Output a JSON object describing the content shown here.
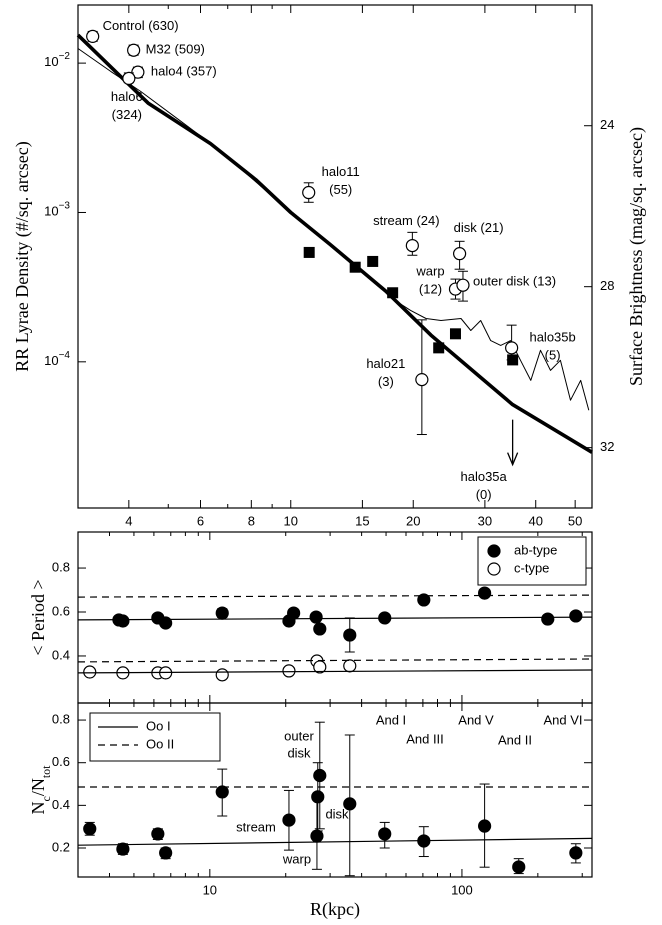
{
  "chart_data": [
    {
      "type": "line",
      "xlog": true,
      "ylog": true,
      "ylabel": "RR Lyrae Density (#/sq. arcsec)",
      "y2label": "Surface Brightness (mag/sq. arcsec)",
      "xlim": [
        3,
        55
      ],
      "ylim": [
        1.05e-05,
        0.0245
      ],
      "y2lim": [
        33.5,
        21
      ],
      "xticks": [
        4,
        6,
        8,
        10,
        15,
        20,
        30,
        40,
        50
      ],
      "xminor_ticks": [
        3,
        5,
        7,
        9
      ],
      "yticks": [
        {
          "value": 0.01,
          "label": "10",
          "exponent": "−2"
        },
        {
          "value": 0.001,
          "label": "10",
          "exponent": "−3"
        },
        {
          "value": 0.0001,
          "label": "10",
          "exponent": "−4"
        }
      ],
      "y2ticks": [
        24,
        28,
        32
      ],
      "series": [
        {
          "style": "thick",
          "color": "#000000",
          "x": [
            3.0,
            4.46,
            6.35,
            8.2,
            10,
            12.5,
            17.1,
            22.1,
            35.1,
            55
          ],
          "values": [
            0.0154,
            0.0054,
            0.00289,
            0.00166,
            0.001,
            0.00061,
            0.000298,
            0.000151,
            5.17e-05,
            2.48e-05
          ]
        },
        {
          "style": "thin",
          "axis": "y2",
          "color": "#000000",
          "x": [
            3.0,
            3.61,
            4.28,
            5.37,
            6.73,
            8.44,
            10,
            11.85,
            14.0,
            16.6,
            18.1,
            19.7,
            21.5,
            23.4,
            26.2,
            27.7,
            29.3,
            31.0,
            32.8,
            34.7,
            36.7,
            38.9,
            41.1,
            43.5,
            46.0,
            48.7,
            51.6,
            54.0
          ],
          "values": [
            22.08,
            22.65,
            23.15,
            23.89,
            24.63,
            25.5,
            26.12,
            26.74,
            27.36,
            27.98,
            28.35,
            28.59,
            28.79,
            28.84,
            28.79,
            29.09,
            28.84,
            29.34,
            29.46,
            29.34,
            29.83,
            30.33,
            29.58,
            30.08,
            29.83,
            30.82,
            30.33,
            31.07
          ]
        },
        {
          "style": "filled-square",
          "color": "#000000",
          "x": [
            11.1,
            14.4,
            15.9,
            17.8,
            23.1,
            25.4,
            35.1
          ],
          "values": [
            0.00054,
            0.00043,
            0.00047,
            0.00029,
            0.000124,
            0.000154,
            0.000103
          ]
        },
        {
          "style": "open-circle",
          "color": "#000000",
          "x": [
            3.26,
            4.11,
            4.21,
            4.0,
            11.07,
            19.9,
            26.0,
            25.4,
            26.5,
            34.9,
            21.0
          ],
          "values": [
            0.0151,
            0.0122,
            0.0087,
            0.0079,
            0.00136,
            0.0006,
            0.00053,
            0.000307,
            0.000326,
            0.000124,
            7.6e-05
          ],
          "err_low": [
            0.014,
            0.0113,
            0.008,
            0.0074,
            0.00117,
            0.000517,
            0.000417,
            0.000263,
            0.000255,
            0.000103,
            3.26e-05
          ],
          "err_high": [
            0.0163,
            0.0132,
            0.0094,
            0.0086,
            0.00158,
            0.000736,
            0.000641,
            0.000358,
            0.000404,
            0.000176,
            0.000191
          ],
          "labels": [
            [
              "Control (630)"
            ],
            [
              "M32 (509)"
            ],
            [
              "halo4 (357)"
            ],
            [
              "halo6",
              "(324)"
            ],
            [
              "halo11",
              "(55)"
            ],
            [
              "stream (24)"
            ],
            [
              "disk (21)"
            ],
            [
              "warp",
              "(12)"
            ],
            [
              "outer disk (13)"
            ],
            [
              "halo35b",
              "(5)"
            ],
            [
              "halo21",
              "(3)"
            ]
          ]
        },
        {
          "style": "arrow",
          "color": "#000000",
          "x": [
            35.1
          ],
          "values": [
            4.1e-05
          ],
          "labels": [
            [
              "halo35a",
              "(0)"
            ]
          ]
        }
      ]
    },
    {
      "type": "scatter",
      "xlog": true,
      "ylabel": "< Period >",
      "xlim": [
        3,
        328
      ],
      "ylim": [
        0.186,
        0.964
      ],
      "xmajor_marks": [
        10,
        100
      ],
      "xminor_ticks": [
        3,
        4,
        5,
        6,
        7,
        8,
        9,
        20,
        30,
        40,
        50,
        60,
        70,
        80,
        90,
        200,
        300
      ],
      "yticks": [
        0.4,
        0.6,
        0.8
      ],
      "legend": "upper right",
      "series": [
        {
          "name": "ab-type",
          "style": "filled-circle",
          "color": "#000000",
          "x": [
            4.36,
            4.52,
            6.22,
            6.68,
            11.2,
            20.6,
            21.5,
            26.4,
            27.3,
            35.9,
            49.4,
            70.6,
            123,
            219,
            283
          ],
          "values": [
            0.564,
            0.559,
            0.573,
            0.55,
            0.595,
            0.559,
            0.595,
            0.577,
            0.523,
            0.495,
            0.573,
            0.655,
            0.686,
            0.568,
            0.582
          ],
          "err_low": [
            null,
            null,
            null,
            null,
            0.575,
            null,
            null,
            null,
            null,
            0.418,
            null,
            null,
            null,
            null,
            null
          ],
          "err_high": [
            null,
            null,
            null,
            null,
            0.615,
            null,
            null,
            null,
            null,
            0.573,
            null,
            null,
            null,
            null,
            null
          ]
        },
        {
          "name": "c-type",
          "style": "open-circle",
          "color": "#000000",
          "x": [
            3.34,
            4.52,
            6.22,
            6.68,
            11.2,
            20.6,
            26.6,
            27.3,
            35.9
          ],
          "values": [
            0.327,
            0.323,
            0.323,
            0.323,
            0.314,
            0.332,
            0.377,
            0.35,
            0.355
          ]
        },
        {
          "style": "solid-line",
          "color": "#000000",
          "x": [
            3,
            328
          ],
          "values": [
            0.564,
            0.577
          ]
        },
        {
          "style": "solid-line",
          "color": "#000000",
          "x": [
            3,
            328
          ],
          "values": [
            0.323,
            0.336
          ]
        },
        {
          "style": "dashed-line",
          "color": "#000000",
          "x": [
            3,
            328
          ],
          "values": [
            0.668,
            0.677
          ]
        },
        {
          "style": "dashed-line",
          "color": "#000000",
          "x": [
            3,
            328
          ],
          "values": [
            0.373,
            0.386
          ]
        }
      ]
    },
    {
      "type": "scatter",
      "xlog": true,
      "xlabel": "R(kpc)",
      "ylabel_parts": [
        {
          "text": "N"
        },
        {
          "text": "c",
          "sub": true
        },
        {
          "text": "/N"
        },
        {
          "text": "tot",
          "sub": true
        }
      ],
      "xlim": [
        3,
        328
      ],
      "ylim": [
        0.064,
        0.88
      ],
      "xticks": [
        10,
        100
      ],
      "xminor_ticks": [
        3,
        4,
        5,
        6,
        7,
        8,
        9,
        20,
        30,
        40,
        50,
        60,
        70,
        80,
        90,
        200,
        300
      ],
      "yticks": [
        0.2,
        0.4,
        0.6,
        0.8
      ],
      "legend": "upper left",
      "annotations": [
        [
          "stream"
        ],
        [
          "outer",
          "disk"
        ],
        [
          "disk"
        ],
        [
          "warp"
        ],
        [
          "And I"
        ],
        [
          "And III"
        ],
        [
          "And V"
        ],
        [
          "And II"
        ],
        [
          "And VI"
        ]
      ],
      "series": [
        {
          "style": "filled-circle",
          "color": "#000000",
          "x": [
            3.34,
            4.52,
            6.22,
            6.68,
            11.2,
            20.6,
            26.6,
            26.8,
            27.3,
            35.9,
            49.4,
            70.6,
            123,
            168,
            283
          ],
          "values": [
            0.29,
            0.195,
            0.266,
            0.177,
            0.463,
            0.331,
            0.256,
            0.44,
            0.54,
            0.407,
            0.266,
            0.233,
            0.303,
            0.111,
            0.177
          ],
          "err_low": [
            0.26,
            0.17,
            0.24,
            0.15,
            0.35,
            0.19,
            0.1,
            0.28,
            0.29,
            0.07,
            0.2,
            0.16,
            0.11,
            0.08,
            0.13
          ],
          "err_high": [
            0.32,
            0.22,
            0.29,
            0.2,
            0.57,
            0.47,
            0.45,
            0.6,
            0.79,
            0.73,
            0.32,
            0.3,
            0.5,
            0.15,
            0.22
          ]
        },
        {
          "name": "Oo I",
          "style": "solid-line",
          "color": "#000000",
          "x": [
            3,
            328
          ],
          "values": [
            0.213,
            0.245
          ]
        },
        {
          "name": "Oo II",
          "style": "dashed-line",
          "color": "#000000",
          "x": [
            3,
            328
          ],
          "values": [
            0.486,
            0.486
          ]
        }
      ]
    }
  ]
}
